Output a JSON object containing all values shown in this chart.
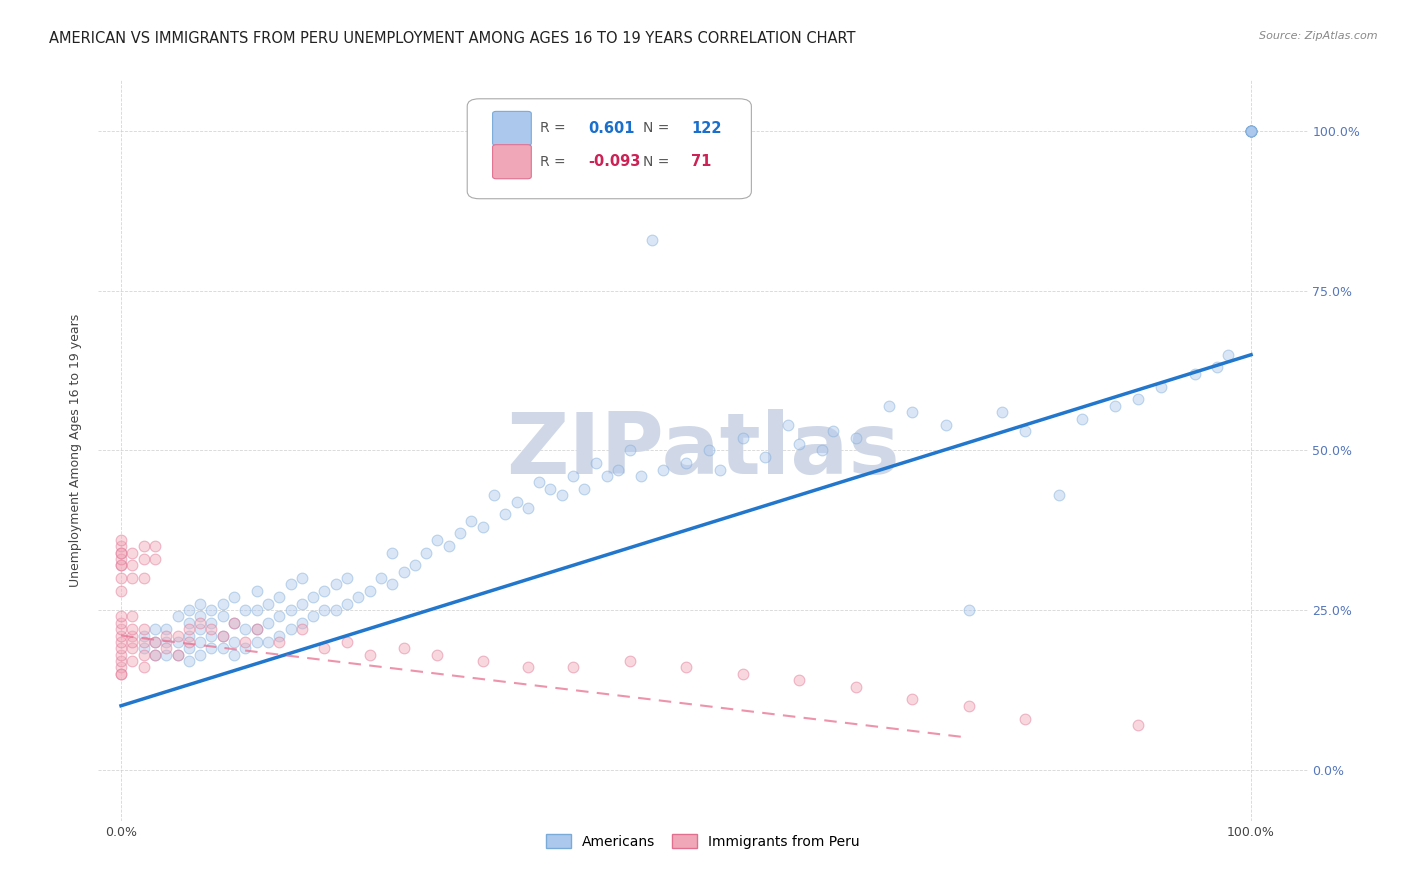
{
  "title": "AMERICAN VS IMMIGRANTS FROM PERU UNEMPLOYMENT AMONG AGES 16 TO 19 YEARS CORRELATION CHART",
  "source": "Source: ZipAtlas.com",
  "ylabel": "Unemployment Among Ages 16 to 19 years",
  "xlim": [
    -0.02,
    1.05
  ],
  "ylim": [
    -0.08,
    1.08
  ],
  "xtick_positions": [
    0.0,
    1.0
  ],
  "xtick_labels": [
    "0.0%",
    "100.0%"
  ],
  "ytick_positions": [
    0.0,
    0.25,
    0.5,
    0.75,
    1.0
  ],
  "ytick_labels": [
    "0.0%",
    "25.0%",
    "50.0%",
    "75.0%",
    "100.0%"
  ],
  "american_color": "#adc8ed",
  "american_edge_color": "#7aaad8",
  "peru_color": "#f0a8b8",
  "peru_edge_color": "#e07090",
  "trendline_american_color": "#2277cc",
  "trendline_peru_color": "#e87090",
  "watermark_text": "ZIPatlas",
  "watermark_color": "#d0d8e8",
  "legend_r_american": "0.601",
  "legend_n_american": "122",
  "legend_r_peru": "-0.093",
  "legend_n_peru": "71",
  "american_x": [
    0.02,
    0.02,
    0.03,
    0.03,
    0.03,
    0.04,
    0.04,
    0.04,
    0.05,
    0.05,
    0.05,
    0.06,
    0.06,
    0.06,
    0.06,
    0.06,
    0.07,
    0.07,
    0.07,
    0.07,
    0.07,
    0.08,
    0.08,
    0.08,
    0.08,
    0.09,
    0.09,
    0.09,
    0.09,
    0.1,
    0.1,
    0.1,
    0.1,
    0.11,
    0.11,
    0.11,
    0.12,
    0.12,
    0.12,
    0.12,
    0.13,
    0.13,
    0.13,
    0.14,
    0.14,
    0.14,
    0.15,
    0.15,
    0.15,
    0.16,
    0.16,
    0.16,
    0.17,
    0.17,
    0.18,
    0.18,
    0.19,
    0.19,
    0.2,
    0.2,
    0.21,
    0.22,
    0.23,
    0.24,
    0.24,
    0.25,
    0.26,
    0.27,
    0.28,
    0.29,
    0.3,
    0.31,
    0.32,
    0.33,
    0.34,
    0.35,
    0.36,
    0.37,
    0.38,
    0.39,
    0.4,
    0.41,
    0.42,
    0.43,
    0.44,
    0.45,
    0.46,
    0.47,
    0.48,
    0.5,
    0.52,
    0.53,
    0.55,
    0.57,
    0.59,
    0.6,
    0.62,
    0.63,
    0.65,
    0.68,
    0.7,
    0.73,
    0.75,
    0.78,
    0.8,
    0.83,
    0.85,
    0.88,
    0.9,
    0.92,
    0.95,
    0.97,
    0.98,
    1.0,
    1.0,
    1.0,
    1.0,
    1.0,
    1.0,
    1.0,
    1.0,
    1.0
  ],
  "american_y": [
    0.19,
    0.21,
    0.18,
    0.2,
    0.22,
    0.18,
    0.2,
    0.22,
    0.18,
    0.2,
    0.24,
    0.17,
    0.19,
    0.21,
    0.23,
    0.25,
    0.18,
    0.2,
    0.22,
    0.24,
    0.26,
    0.19,
    0.21,
    0.23,
    0.25,
    0.19,
    0.21,
    0.24,
    0.26,
    0.18,
    0.2,
    0.23,
    0.27,
    0.19,
    0.22,
    0.25,
    0.2,
    0.22,
    0.25,
    0.28,
    0.2,
    0.23,
    0.26,
    0.21,
    0.24,
    0.27,
    0.22,
    0.25,
    0.29,
    0.23,
    0.26,
    0.3,
    0.24,
    0.27,
    0.25,
    0.28,
    0.25,
    0.29,
    0.26,
    0.3,
    0.27,
    0.28,
    0.3,
    0.29,
    0.34,
    0.31,
    0.32,
    0.34,
    0.36,
    0.35,
    0.37,
    0.39,
    0.38,
    0.43,
    0.4,
    0.42,
    0.41,
    0.45,
    0.44,
    0.43,
    0.46,
    0.44,
    0.48,
    0.46,
    0.47,
    0.5,
    0.46,
    0.83,
    0.47,
    0.48,
    0.5,
    0.47,
    0.52,
    0.49,
    0.54,
    0.51,
    0.5,
    0.53,
    0.52,
    0.57,
    0.56,
    0.54,
    0.25,
    0.56,
    0.53,
    0.43,
    0.55,
    0.57,
    0.58,
    0.6,
    0.62,
    0.63,
    0.65,
    1.0,
    1.0,
    1.0,
    1.0,
    1.0,
    1.0,
    1.0,
    1.0,
    1.0
  ],
  "peru_x": [
    0.0,
    0.0,
    0.0,
    0.0,
    0.0,
    0.0,
    0.0,
    0.0,
    0.0,
    0.0,
    0.0,
    0.0,
    0.0,
    0.0,
    0.0,
    0.0,
    0.0,
    0.0,
    0.0,
    0.0,
    0.01,
    0.01,
    0.01,
    0.01,
    0.01,
    0.01,
    0.01,
    0.01,
    0.01,
    0.02,
    0.02,
    0.02,
    0.02,
    0.02,
    0.02,
    0.02,
    0.03,
    0.03,
    0.03,
    0.03,
    0.04,
    0.04,
    0.05,
    0.05,
    0.06,
    0.06,
    0.07,
    0.08,
    0.09,
    0.1,
    0.11,
    0.12,
    0.14,
    0.16,
    0.18,
    0.2,
    0.22,
    0.25,
    0.28,
    0.32,
    0.36,
    0.4,
    0.45,
    0.5,
    0.55,
    0.6,
    0.65,
    0.7,
    0.75,
    0.8,
    0.9
  ],
  "peru_y": [
    0.15,
    0.16,
    0.17,
    0.18,
    0.19,
    0.2,
    0.21,
    0.22,
    0.23,
    0.24,
    0.28,
    0.3,
    0.32,
    0.34,
    0.35,
    0.36,
    0.32,
    0.33,
    0.34,
    0.15,
    0.17,
    0.19,
    0.21,
    0.3,
    0.32,
    0.34,
    0.2,
    0.22,
    0.24,
    0.16,
    0.18,
    0.2,
    0.22,
    0.3,
    0.33,
    0.35,
    0.18,
    0.2,
    0.33,
    0.35,
    0.19,
    0.21,
    0.18,
    0.21,
    0.2,
    0.22,
    0.23,
    0.22,
    0.21,
    0.23,
    0.2,
    0.22,
    0.2,
    0.22,
    0.19,
    0.2,
    0.18,
    0.19,
    0.18,
    0.17,
    0.16,
    0.16,
    0.17,
    0.16,
    0.15,
    0.14,
    0.13,
    0.11,
    0.1,
    0.08,
    0.07
  ],
  "background_color": "#ffffff",
  "grid_color": "#cccccc",
  "title_fontsize": 10.5,
  "axis_label_fontsize": 9,
  "tick_fontsize": 9,
  "marker_size": 60,
  "marker_alpha": 0.45
}
